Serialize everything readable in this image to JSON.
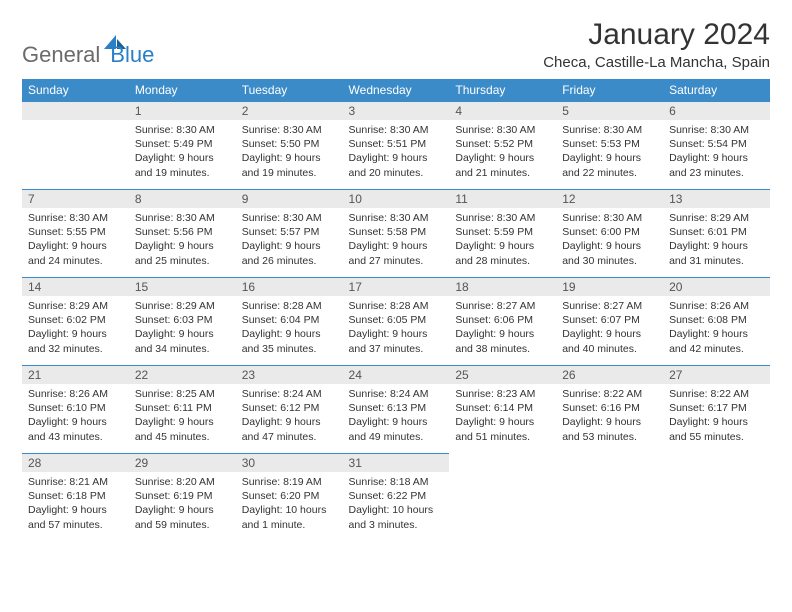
{
  "logo": {
    "part1": "General",
    "part2": "Blue"
  },
  "title": "January 2024",
  "location": "Checa, Castille-La Mancha, Spain",
  "weekdays": [
    "Sunday",
    "Monday",
    "Tuesday",
    "Wednesday",
    "Thursday",
    "Friday",
    "Saturday"
  ],
  "colors": {
    "header_bg": "#3b8bc9",
    "header_text": "#ffffff",
    "daynum_bg": "#eaeaea",
    "border": "#3b8bc9",
    "logo_gray": "#6b6b6b",
    "logo_blue": "#2a7fc5"
  },
  "typography": {
    "title_fontsize": 30,
    "location_fontsize": 15,
    "weekday_fontsize": 12,
    "daynum_fontsize": 12,
    "content_fontsize": 10.5
  },
  "weeks": [
    [
      null,
      {
        "n": "1",
        "sunrise": "8:30 AM",
        "sunset": "5:49 PM",
        "daylight": "9 hours and 19 minutes."
      },
      {
        "n": "2",
        "sunrise": "8:30 AM",
        "sunset": "5:50 PM",
        "daylight": "9 hours and 19 minutes."
      },
      {
        "n": "3",
        "sunrise": "8:30 AM",
        "sunset": "5:51 PM",
        "daylight": "9 hours and 20 minutes."
      },
      {
        "n": "4",
        "sunrise": "8:30 AM",
        "sunset": "5:52 PM",
        "daylight": "9 hours and 21 minutes."
      },
      {
        "n": "5",
        "sunrise": "8:30 AM",
        "sunset": "5:53 PM",
        "daylight": "9 hours and 22 minutes."
      },
      {
        "n": "6",
        "sunrise": "8:30 AM",
        "sunset": "5:54 PM",
        "daylight": "9 hours and 23 minutes."
      }
    ],
    [
      {
        "n": "7",
        "sunrise": "8:30 AM",
        "sunset": "5:55 PM",
        "daylight": "9 hours and 24 minutes."
      },
      {
        "n": "8",
        "sunrise": "8:30 AM",
        "sunset": "5:56 PM",
        "daylight": "9 hours and 25 minutes."
      },
      {
        "n": "9",
        "sunrise": "8:30 AM",
        "sunset": "5:57 PM",
        "daylight": "9 hours and 26 minutes."
      },
      {
        "n": "10",
        "sunrise": "8:30 AM",
        "sunset": "5:58 PM",
        "daylight": "9 hours and 27 minutes."
      },
      {
        "n": "11",
        "sunrise": "8:30 AM",
        "sunset": "5:59 PM",
        "daylight": "9 hours and 28 minutes."
      },
      {
        "n": "12",
        "sunrise": "8:30 AM",
        "sunset": "6:00 PM",
        "daylight": "9 hours and 30 minutes."
      },
      {
        "n": "13",
        "sunrise": "8:29 AM",
        "sunset": "6:01 PM",
        "daylight": "9 hours and 31 minutes."
      }
    ],
    [
      {
        "n": "14",
        "sunrise": "8:29 AM",
        "sunset": "6:02 PM",
        "daylight": "9 hours and 32 minutes."
      },
      {
        "n": "15",
        "sunrise": "8:29 AM",
        "sunset": "6:03 PM",
        "daylight": "9 hours and 34 minutes."
      },
      {
        "n": "16",
        "sunrise": "8:28 AM",
        "sunset": "6:04 PM",
        "daylight": "9 hours and 35 minutes."
      },
      {
        "n": "17",
        "sunrise": "8:28 AM",
        "sunset": "6:05 PM",
        "daylight": "9 hours and 37 minutes."
      },
      {
        "n": "18",
        "sunrise": "8:27 AM",
        "sunset": "6:06 PM",
        "daylight": "9 hours and 38 minutes."
      },
      {
        "n": "19",
        "sunrise": "8:27 AM",
        "sunset": "6:07 PM",
        "daylight": "9 hours and 40 minutes."
      },
      {
        "n": "20",
        "sunrise": "8:26 AM",
        "sunset": "6:08 PM",
        "daylight": "9 hours and 42 minutes."
      }
    ],
    [
      {
        "n": "21",
        "sunrise": "8:26 AM",
        "sunset": "6:10 PM",
        "daylight": "9 hours and 43 minutes."
      },
      {
        "n": "22",
        "sunrise": "8:25 AM",
        "sunset": "6:11 PM",
        "daylight": "9 hours and 45 minutes."
      },
      {
        "n": "23",
        "sunrise": "8:24 AM",
        "sunset": "6:12 PM",
        "daylight": "9 hours and 47 minutes."
      },
      {
        "n": "24",
        "sunrise": "8:24 AM",
        "sunset": "6:13 PM",
        "daylight": "9 hours and 49 minutes."
      },
      {
        "n": "25",
        "sunrise": "8:23 AM",
        "sunset": "6:14 PM",
        "daylight": "9 hours and 51 minutes."
      },
      {
        "n": "26",
        "sunrise": "8:22 AM",
        "sunset": "6:16 PM",
        "daylight": "9 hours and 53 minutes."
      },
      {
        "n": "27",
        "sunrise": "8:22 AM",
        "sunset": "6:17 PM",
        "daylight": "9 hours and 55 minutes."
      }
    ],
    [
      {
        "n": "28",
        "sunrise": "8:21 AM",
        "sunset": "6:18 PM",
        "daylight": "9 hours and 57 minutes."
      },
      {
        "n": "29",
        "sunrise": "8:20 AM",
        "sunset": "6:19 PM",
        "daylight": "9 hours and 59 minutes."
      },
      {
        "n": "30",
        "sunrise": "8:19 AM",
        "sunset": "6:20 PM",
        "daylight": "10 hours and 1 minute."
      },
      {
        "n": "31",
        "sunrise": "8:18 AM",
        "sunset": "6:22 PM",
        "daylight": "10 hours and 3 minutes."
      },
      null,
      null,
      null
    ]
  ],
  "labels": {
    "sunrise": "Sunrise:",
    "sunset": "Sunset:",
    "daylight": "Daylight:"
  }
}
